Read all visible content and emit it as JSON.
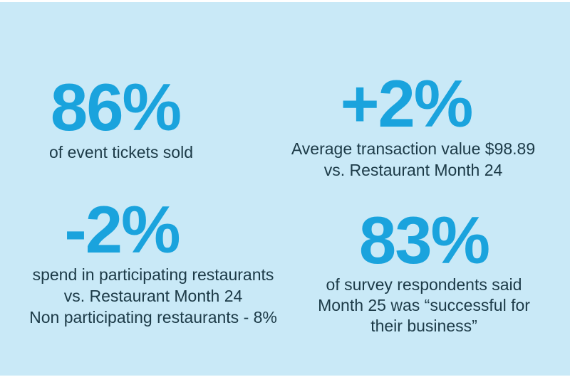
{
  "colors": {
    "background": "#c9e9f7",
    "frame": "#ffffff",
    "accent_blue": "#1aa3dd",
    "dark_text": "#1c3a47"
  },
  "chart_data": {
    "type": "table",
    "layout": "2x2 big-number stat callouts on light blue panel",
    "stats": [
      {
        "value": "86%",
        "numeric": 86,
        "caption_lines": [
          "of event tickets sold"
        ]
      },
      {
        "value": "+2%",
        "numeric": 2,
        "caption_lines": [
          "Average transaction value $98.89",
          "vs. Restaurant Month 24"
        ]
      },
      {
        "value": "-2%",
        "numeric": -2,
        "caption_lines": [
          "spend in participating restaurants",
          "vs. Restaurant Month 24",
          "Non participating restaurants - 8%"
        ]
      },
      {
        "value": "83%",
        "numeric": 83,
        "caption_lines": [
          "of survey respondents said",
          "Month 25 was “successful for",
          "their business”"
        ]
      }
    ]
  }
}
